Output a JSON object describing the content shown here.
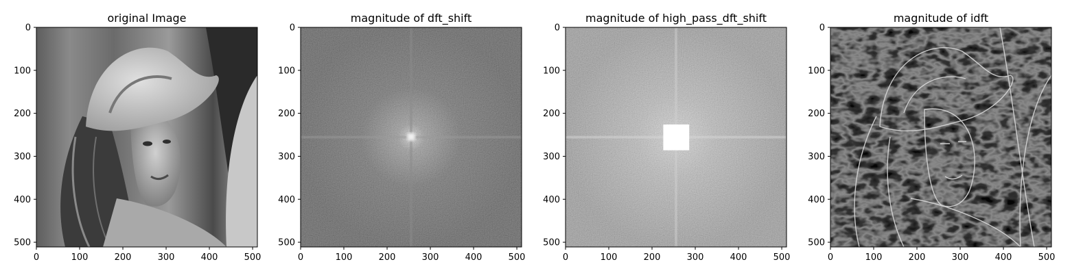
{
  "chart_data": [
    {
      "type": "heatmap",
      "title": "original Image",
      "xlim": [
        0,
        511
      ],
      "ylim": [
        511,
        0
      ],
      "xticks": [
        "0",
        "100",
        "200",
        "300",
        "400",
        "500"
      ],
      "yticks": [
        "0",
        "100",
        "200",
        "300",
        "400",
        "500"
      ],
      "colormap": "gray",
      "content": "grayscale photograph (512x512)"
    },
    {
      "type": "heatmap",
      "title": "magnitude of dft_shift",
      "xlim": [
        0,
        511
      ],
      "ylim": [
        511,
        0
      ],
      "xticks": [
        "0",
        "100",
        "200",
        "300",
        "400",
        "500"
      ],
      "yticks": [
        "0",
        "100",
        "200",
        "300",
        "400",
        "500"
      ],
      "colormap": "gray",
      "content": "log-magnitude spectrum, bright center at (256, 256)"
    },
    {
      "type": "heatmap",
      "title": "magnitude of high_pass_dft_shift",
      "xlim": [
        0,
        511
      ],
      "ylim": [
        511,
        0
      ],
      "xticks": [
        "0",
        "100",
        "200",
        "300",
        "400",
        "500"
      ],
      "yticks": [
        "0",
        "100",
        "200",
        "300",
        "400",
        "500"
      ],
      "colormap": "gray",
      "mask": {
        "x": [
          226,
          286
        ],
        "y": [
          226,
          286
        ],
        "color": "#ffffff"
      },
      "content": "spectrum with central square masked"
    },
    {
      "type": "heatmap",
      "title": "magnitude of idft",
      "xlim": [
        0,
        511
      ],
      "ylim": [
        511,
        0
      ],
      "xticks": [
        "0",
        "100",
        "200",
        "300",
        "400",
        "500"
      ],
      "yticks": [
        "0",
        "100",
        "200",
        "300",
        "400",
        "500"
      ],
      "colormap": "gray",
      "content": "edge image (inverse DFT of high-pass)"
    }
  ]
}
